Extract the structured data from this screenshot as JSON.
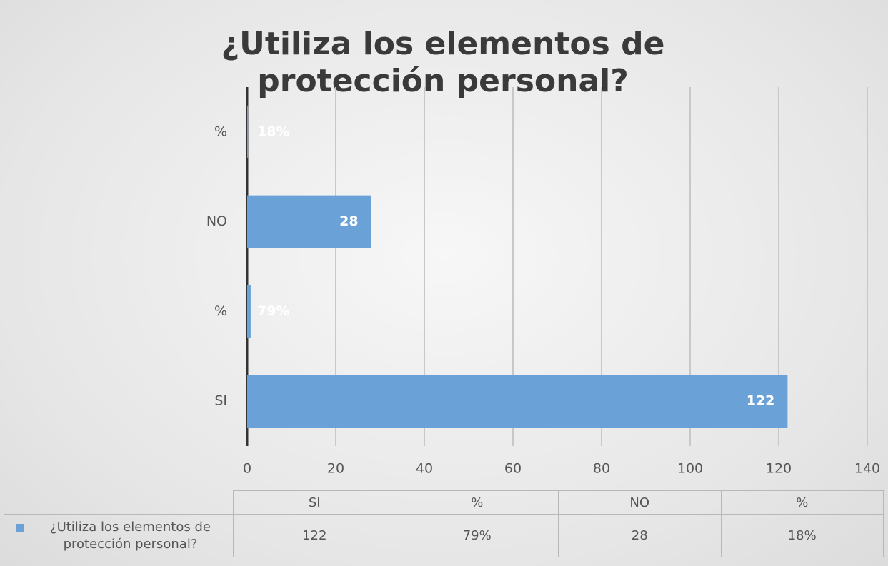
{
  "chart_data": {
    "type": "bar",
    "orientation": "horizontal",
    "title": "¿Utiliza los elementos de protección personal?",
    "categories": [
      "SI",
      "%",
      "NO",
      "%"
    ],
    "series": [
      {
        "name": "¿Utiliza los elementos de protección personal?",
        "color": "#6aa2d8",
        "values": [
          122,
          0.79,
          28,
          0.18
        ],
        "value_labels": [
          "122",
          "79%",
          "28",
          "18%"
        ]
      }
    ],
    "xlim": [
      0,
      140
    ],
    "xticks": [
      0,
      20,
      40,
      60,
      80,
      100,
      120,
      140
    ],
    "grid": true,
    "data_table": true
  }
}
